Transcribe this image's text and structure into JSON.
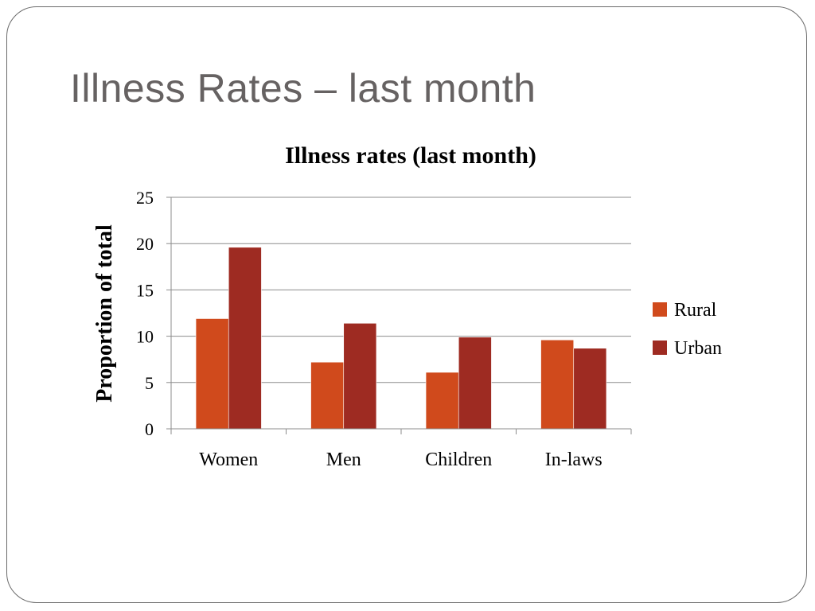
{
  "slide": {
    "title": "Illness Rates – last month"
  },
  "chart_data": {
    "type": "bar",
    "title": "Illness rates (last month)",
    "xlabel": "",
    "ylabel": "Proportion of total",
    "categories": [
      "Women",
      "Men",
      "Children",
      "In-laws"
    ],
    "series": [
      {
        "name": "Rural",
        "values": [
          11.9,
          7.2,
          6.1,
          9.6
        ],
        "color": "#D04A1C"
      },
      {
        "name": "Urban",
        "values": [
          19.6,
          11.4,
          9.9,
          8.7
        ],
        "color": "#9E2B22"
      }
    ],
    "ylim": [
      0,
      25
    ],
    "yticks": [
      0,
      5,
      10,
      15,
      20,
      25
    ],
    "grid": true,
    "legend_position": "right"
  }
}
